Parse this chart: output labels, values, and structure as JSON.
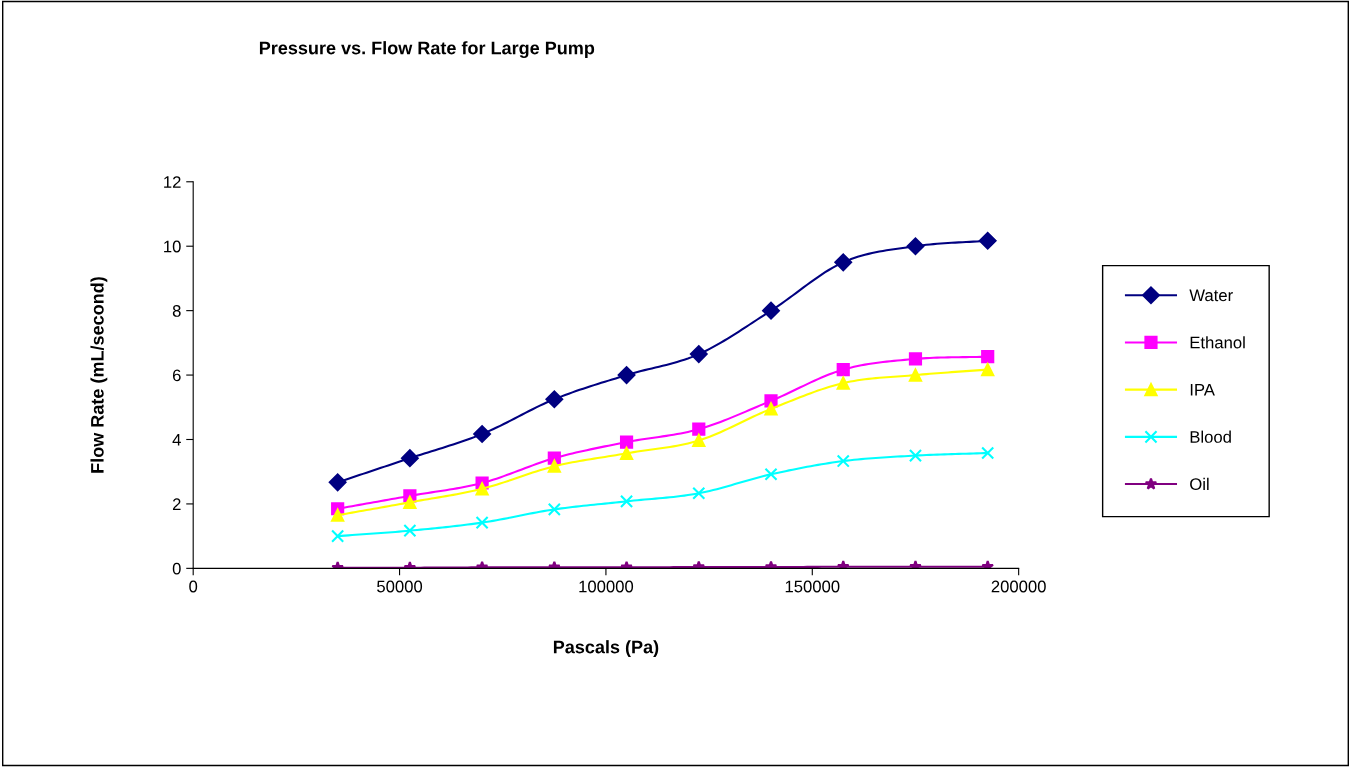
{
  "chart_data": {
    "type": "line",
    "title": "Pressure vs. Flow Rate for Large Pump",
    "xlabel": "Pascals (Pa)",
    "ylabel": "Flow Rate (mL/second)",
    "x": [
      35000,
      52500,
      70000,
      87500,
      105000,
      122500,
      140000,
      157500,
      175000,
      192500
    ],
    "series": [
      {
        "name": "Water",
        "color": "#000080",
        "marker": "diamond",
        "values": [
          2.67,
          3.42,
          4.17,
          5.25,
          6.0,
          6.65,
          8.0,
          9.5,
          10.0,
          10.17
        ]
      },
      {
        "name": "Ethanol",
        "color": "#ff00ff",
        "marker": "square",
        "values": [
          1.85,
          2.25,
          2.65,
          3.42,
          3.92,
          4.32,
          5.2,
          6.17,
          6.5,
          6.57
        ]
      },
      {
        "name": "IPA",
        "color": "#ffff00",
        "marker": "triangle",
        "values": [
          1.65,
          2.05,
          2.47,
          3.17,
          3.57,
          3.97,
          4.95,
          5.75,
          6.0,
          6.17
        ]
      },
      {
        "name": "Blood",
        "color": "#00ffff",
        "marker": "cross",
        "values": [
          1.0,
          1.17,
          1.42,
          1.83,
          2.08,
          2.33,
          2.92,
          3.33,
          3.5,
          3.58
        ]
      },
      {
        "name": "Oil",
        "color": "#800080",
        "marker": "star",
        "values": [
          0.02,
          0.02,
          0.03,
          0.03,
          0.03,
          0.04,
          0.04,
          0.05,
          0.05,
          0.05
        ]
      }
    ],
    "xlim": [
      0,
      200000
    ],
    "xticks": [
      0,
      50000,
      100000,
      150000,
      200000
    ],
    "ylim": [
      0,
      12
    ],
    "yticks": [
      0,
      2,
      4,
      6,
      8,
      10,
      12
    ],
    "grid": false,
    "legend": "right",
    "line_style": "solid"
  }
}
